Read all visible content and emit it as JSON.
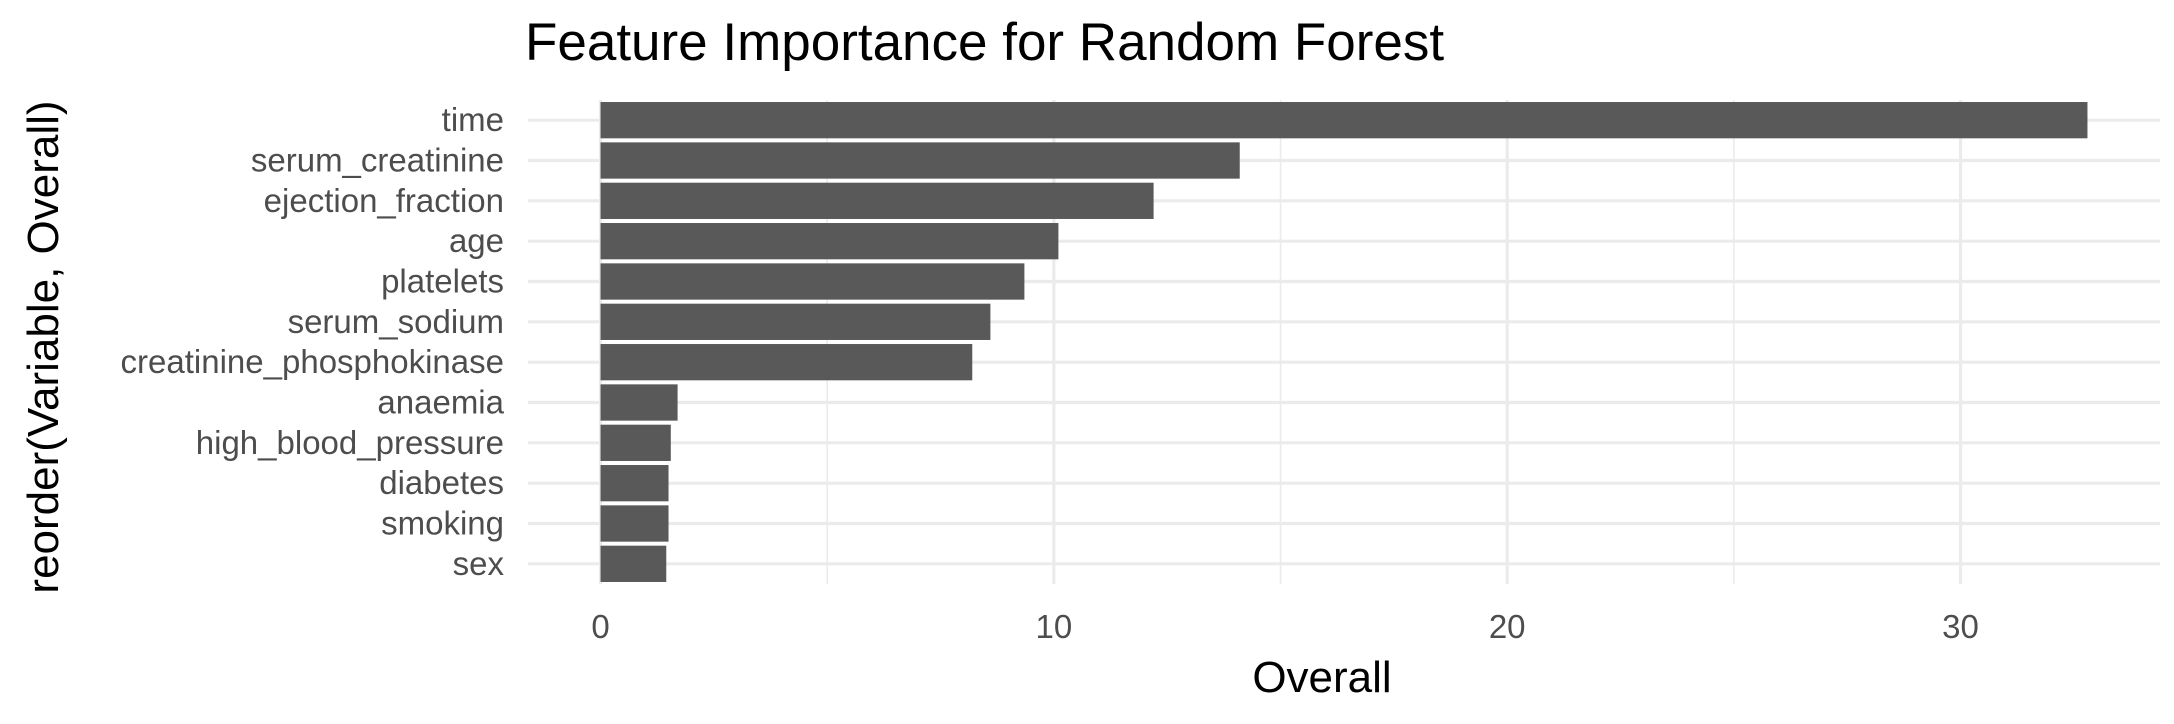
{
  "chart_data": {
    "type": "bar",
    "orientation": "horizontal",
    "title": "Feature Importance for Random Forest",
    "xlabel": "Overall",
    "ylabel": "reorder(Variable, Overall)",
    "categories": [
      "time",
      "serum_creatinine",
      "ejection_fraction",
      "age",
      "platelets",
      "serum_sodium",
      "creatinine_phosphokinase",
      "anaemia",
      "high_blood_pressure",
      "diabetes",
      "smoking",
      "sex"
    ],
    "values": [
      32.8,
      14.1,
      12.2,
      10.1,
      9.35,
      8.6,
      8.2,
      1.7,
      1.55,
      1.5,
      1.5,
      1.45
    ],
    "xlim": [
      -1.6,
      34.4
    ],
    "xticks": [
      0,
      10,
      20,
      30
    ],
    "xtick_labels": [
      "0",
      "10",
      "20",
      "30"
    ],
    "grid": true,
    "bar_color": "#595959"
  }
}
